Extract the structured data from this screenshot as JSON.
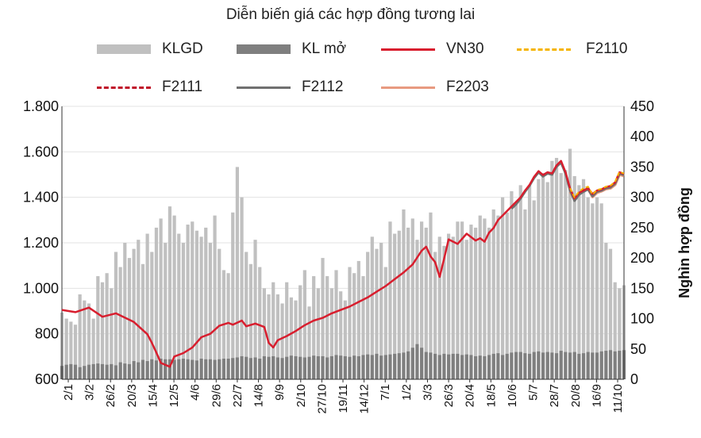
{
  "chart_data": {
    "type": "line",
    "title": "Diễn biến giá các hợp đồng tương lai",
    "x_tick_labels": [
      "2/1",
      "3/2",
      "26/2",
      "20/3",
      "15/4",
      "12/5",
      "4/6",
      "29/6",
      "22/7",
      "14/8",
      "9/9",
      "2/10",
      "27/10",
      "19/11",
      "14/12",
      "7/1",
      "1/2",
      "3/3",
      "26/3",
      "20/4",
      "18/5",
      "10/6",
      "5/7",
      "28/7",
      "20/8",
      "16/9",
      "11/10"
    ],
    "left_axis": {
      "ticks": [
        "600",
        "800",
        "1.000",
        "1.200",
        "1.400",
        "1.600",
        "1.800"
      ],
      "min": 600,
      "max": 1800
    },
    "right_axis": {
      "ticks": [
        "0",
        "50",
        "100",
        "150",
        "200",
        "250",
        "300",
        "350",
        "400",
        "450"
      ],
      "min": 0,
      "max": 450,
      "label": "Nghìn hợp đồng"
    },
    "legend": [
      "KLGD",
      "KL mở",
      "VN30",
      "F2110",
      "F2111",
      "F2112",
      "F2203"
    ],
    "colors": {
      "KLGD": "#c0c0c0",
      "KL mở": "#7f7f7f",
      "VN30": "#d81e2e",
      "F2110": "#f5b400",
      "F2111": "#c0142a",
      "F2112": "#707070",
      "F2203": "#e89a80"
    },
    "series": [
      {
        "name": "VN30",
        "axis": "left",
        "points": [
          [
            0,
            905
          ],
          [
            3,
            895
          ],
          [
            6,
            915
          ],
          [
            9,
            875
          ],
          [
            12,
            890
          ],
          [
            16,
            852
          ],
          [
            19,
            798
          ],
          [
            20,
            760
          ],
          [
            21,
            718
          ],
          [
            22,
            672
          ],
          [
            24,
            655
          ],
          [
            25,
            700
          ],
          [
            27,
            715
          ],
          [
            29,
            740
          ],
          [
            31,
            785
          ],
          [
            33,
            800
          ],
          [
            35,
            835
          ],
          [
            37,
            848
          ],
          [
            38,
            840
          ],
          [
            40,
            858
          ],
          [
            41,
            833
          ],
          [
            43,
            845
          ],
          [
            45,
            830
          ],
          [
            46,
            760
          ],
          [
            47,
            740
          ],
          [
            48,
            772
          ],
          [
            50,
            790
          ],
          [
            52,
            812
          ],
          [
            54,
            838
          ],
          [
            56,
            858
          ],
          [
            58,
            870
          ],
          [
            60,
            890
          ],
          [
            62,
            905
          ],
          [
            64,
            920
          ],
          [
            66,
            940
          ],
          [
            68,
            960
          ],
          [
            70,
            985
          ],
          [
            72,
            1010
          ],
          [
            74,
            1040
          ],
          [
            76,
            1070
          ],
          [
            78,
            1105
          ],
          [
            80,
            1165
          ],
          [
            81,
            1183
          ],
          [
            82,
            1140
          ],
          [
            83,
            1115
          ],
          [
            84,
            1050
          ],
          [
            85,
            1130
          ],
          [
            86,
            1215
          ],
          [
            88,
            1195
          ],
          [
            90,
            1240
          ],
          [
            92,
            1210
          ],
          [
            93,
            1220
          ],
          [
            94,
            1205
          ],
          [
            95,
            1245
          ],
          [
            96,
            1265
          ],
          [
            97,
            1300
          ],
          [
            98,
            1320
          ],
          [
            100,
            1360
          ],
          [
            101,
            1380
          ],
          [
            102,
            1400
          ],
          [
            103,
            1430
          ],
          [
            104,
            1455
          ],
          [
            105,
            1490
          ],
          [
            106,
            1515
          ],
          [
            107,
            1498
          ],
          [
            108,
            1510
          ],
          [
            109,
            1505
          ],
          [
            110,
            1540
          ],
          [
            111,
            1560
          ],
          [
            112,
            1510
          ],
          [
            113,
            1440
          ],
          [
            114,
            1395
          ],
          [
            115,
            1420
          ],
          [
            116,
            1430
          ],
          [
            117,
            1440
          ],
          [
            118,
            1415
          ],
          [
            119,
            1430
          ],
          [
            120,
            1435
          ],
          [
            121,
            1445
          ],
          [
            122,
            1450
          ],
          [
            123,
            1465
          ],
          [
            124,
            1510
          ],
          [
            125,
            1503
          ]
        ]
      },
      {
        "name": "F2110",
        "axis": "left",
        "points": [
          [
            113,
            1440
          ],
          [
            114,
            1400
          ],
          [
            115,
            1425
          ],
          [
            116,
            1440
          ],
          [
            117,
            1447
          ],
          [
            118,
            1412
          ],
          [
            119,
            1432
          ],
          [
            120,
            1438
          ],
          [
            121,
            1447
          ],
          [
            122,
            1452
          ],
          [
            123,
            1468
          ],
          [
            124,
            1512
          ],
          [
            125,
            1505
          ]
        ]
      },
      {
        "name": "F2111",
        "axis": "left",
        "points": [
          [
            113,
            1438
          ],
          [
            114,
            1398
          ],
          [
            115,
            1422
          ],
          [
            116,
            1436
          ],
          [
            117,
            1445
          ],
          [
            118,
            1410
          ],
          [
            119,
            1430
          ],
          [
            120,
            1436
          ],
          [
            121,
            1446
          ],
          [
            122,
            1451
          ],
          [
            123,
            1466
          ],
          [
            124,
            1510
          ],
          [
            125,
            1504
          ]
        ]
      },
      {
        "name": "F2112",
        "axis": "left",
        "points": [
          [
            100,
            1350
          ],
          [
            101,
            1370
          ],
          [
            102,
            1395
          ],
          [
            103,
            1425
          ],
          [
            104,
            1452
          ],
          [
            105,
            1485
          ],
          [
            106,
            1510
          ],
          [
            107,
            1492
          ],
          [
            108,
            1505
          ],
          [
            109,
            1500
          ],
          [
            110,
            1535
          ],
          [
            111,
            1553
          ],
          [
            112,
            1505
          ],
          [
            113,
            1432
          ],
          [
            114,
            1385
          ],
          [
            115,
            1412
          ],
          [
            116,
            1425
          ],
          [
            117,
            1435
          ],
          [
            118,
            1405
          ],
          [
            119,
            1425
          ],
          [
            120,
            1430
          ],
          [
            121,
            1440
          ],
          [
            122,
            1444
          ],
          [
            123,
            1460
          ],
          [
            124,
            1505
          ],
          [
            125,
            1498
          ]
        ]
      },
      {
        "name": "F2203",
        "axis": "left",
        "points": [
          [
            113,
            1425
          ],
          [
            114,
            1392
          ],
          [
            115,
            1418
          ],
          [
            116,
            1430
          ],
          [
            117,
            1438
          ],
          [
            118,
            1402
          ],
          [
            119,
            1420
          ],
          [
            120,
            1427
          ],
          [
            121,
            1437
          ],
          [
            122,
            1440
          ],
          [
            123,
            1455
          ],
          [
            124,
            1500
          ],
          [
            125,
            1494
          ]
        ]
      },
      {
        "name": "KLGD",
        "axis": "right",
        "type": "bar",
        "values": [
          110,
          100,
          95,
          90,
          140,
          130,
          125,
          100,
          170,
          160,
          175,
          150,
          210,
          185,
          225,
          200,
          215,
          230,
          190,
          240,
          210,
          250,
          265,
          225,
          285,
          270,
          240,
          225,
          255,
          260,
          245,
          235,
          250,
          225,
          270,
          215,
          180,
          175,
          275,
          350,
          300,
          210,
          190,
          230,
          185,
          150,
          140,
          160,
          140,
          125,
          160,
          135,
          130,
          155,
          180,
          120,
          170,
          150,
          200,
          170,
          150,
          180,
          145,
          130,
          185,
          175,
          195,
          170,
          210,
          235,
          215,
          225,
          185,
          260,
          240,
          245,
          280,
          250,
          265,
          230,
          260,
          250,
          275,
          210,
          235,
          220,
          240,
          235,
          260,
          260,
          230,
          255,
          250,
          270,
          265,
          250,
          280,
          270,
          300,
          275,
          310,
          290,
          320,
          280,
          320,
          295,
          330,
          340,
          325,
          360,
          365,
          340,
          345,
          380,
          335,
          320,
          330,
          300,
          290,
          300,
          290,
          225,
          215,
          160,
          150,
          155
        ]
      },
      {
        "name": "KL mở",
        "axis": "right",
        "type": "bar",
        "values": [
          22,
          24,
          25,
          24,
          20,
          22,
          24,
          25,
          26,
          25,
          24,
          25,
          23,
          28,
          26,
          25,
          30,
          28,
          32,
          30,
          33,
          31,
          34,
          33,
          33,
          32,
          33,
          34,
          33,
          32,
          31,
          34,
          33,
          33,
          32,
          33,
          34,
          34,
          35,
          36,
          38,
          37,
          35,
          36,
          34,
          38,
          37,
          38,
          36,
          35,
          37,
          39,
          38,
          37,
          36,
          37,
          39,
          38,
          38,
          36,
          38,
          40,
          39,
          38,
          37,
          39,
          38,
          40,
          41,
          40,
          42,
          39,
          40,
          41,
          42,
          43,
          44,
          46,
          52,
          58,
          52,
          45,
          44,
          42,
          40,
          42,
          41,
          42,
          42,
          40,
          41,
          40,
          38,
          39,
          38,
          40,
          42,
          43,
          40,
          42,
          44,
          45,
          45,
          43,
          42,
          45,
          46,
          44,
          45,
          44,
          43,
          47,
          45,
          44,
          45,
          42,
          43,
          45,
          44,
          44,
          46,
          47,
          48,
          46,
          47,
          48
        ]
      }
    ],
    "n_points": 126
  }
}
